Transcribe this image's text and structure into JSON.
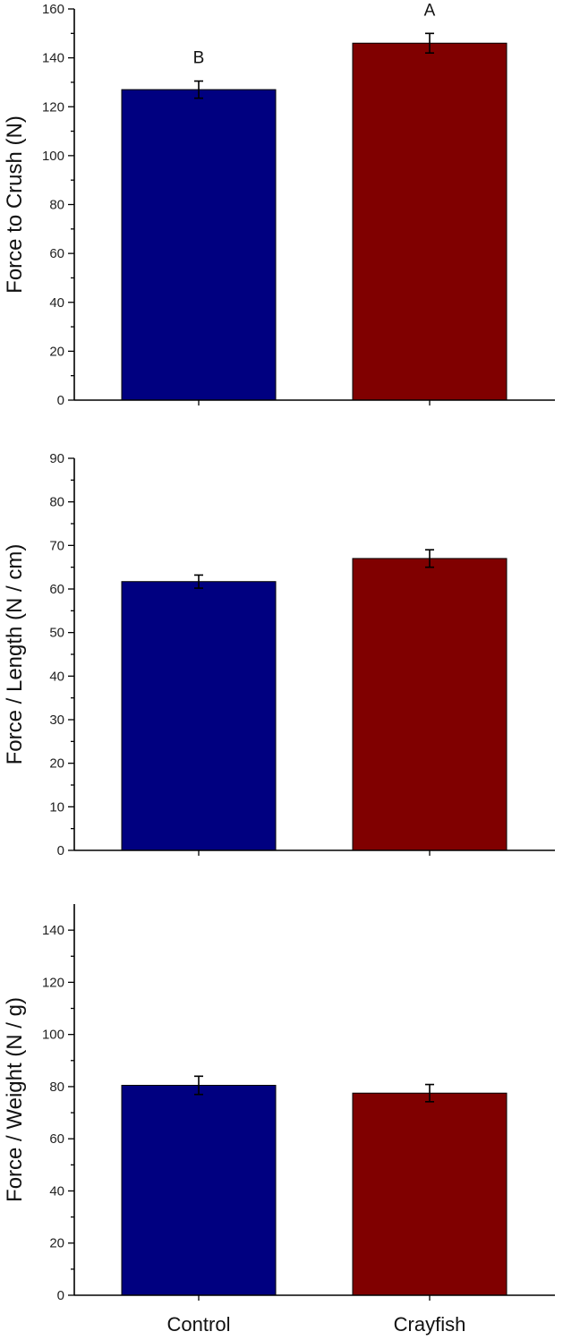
{
  "colors": {
    "control": "#000080",
    "crayfish": "#800000"
  },
  "chart_data": [
    {
      "type": "bar",
      "categories": [
        "Control",
        "Crayfish"
      ],
      "values": [
        127,
        146
      ],
      "errors": [
        3.5,
        4
      ],
      "annotations": [
        "B",
        "A"
      ],
      "title": "",
      "xlabel": "",
      "ylabel": "Force to Crush (N)",
      "ylim": [
        0,
        160
      ],
      "yticks": [
        0,
        20,
        40,
        60,
        80,
        100,
        120,
        140,
        160
      ],
      "show_category_labels": false,
      "grid": false
    },
    {
      "type": "bar",
      "categories": [
        "Control",
        "Crayfish"
      ],
      "values": [
        61.7,
        67
      ],
      "errors": [
        1.5,
        2
      ],
      "annotations": [
        "",
        ""
      ],
      "title": "",
      "xlabel": "",
      "ylabel": "Force / Length (N / cm)",
      "ylim": [
        0,
        90
      ],
      "yticks": [
        0,
        10,
        20,
        30,
        40,
        50,
        60,
        70,
        80,
        90
      ],
      "show_category_labels": false,
      "grid": false
    },
    {
      "type": "bar",
      "categories": [
        "Control",
        "Crayfish"
      ],
      "values": [
        80.5,
        77.5
      ],
      "errors": [
        3.5,
        3.3
      ],
      "annotations": [
        "",
        ""
      ],
      "title": "",
      "xlabel": "",
      "ylabel": "Force / Weight (N / g)",
      "ylim": [
        0,
        150
      ],
      "yticks": [
        0,
        20,
        40,
        60,
        80,
        100,
        120,
        140
      ],
      "show_category_labels": true,
      "grid": false
    }
  ]
}
